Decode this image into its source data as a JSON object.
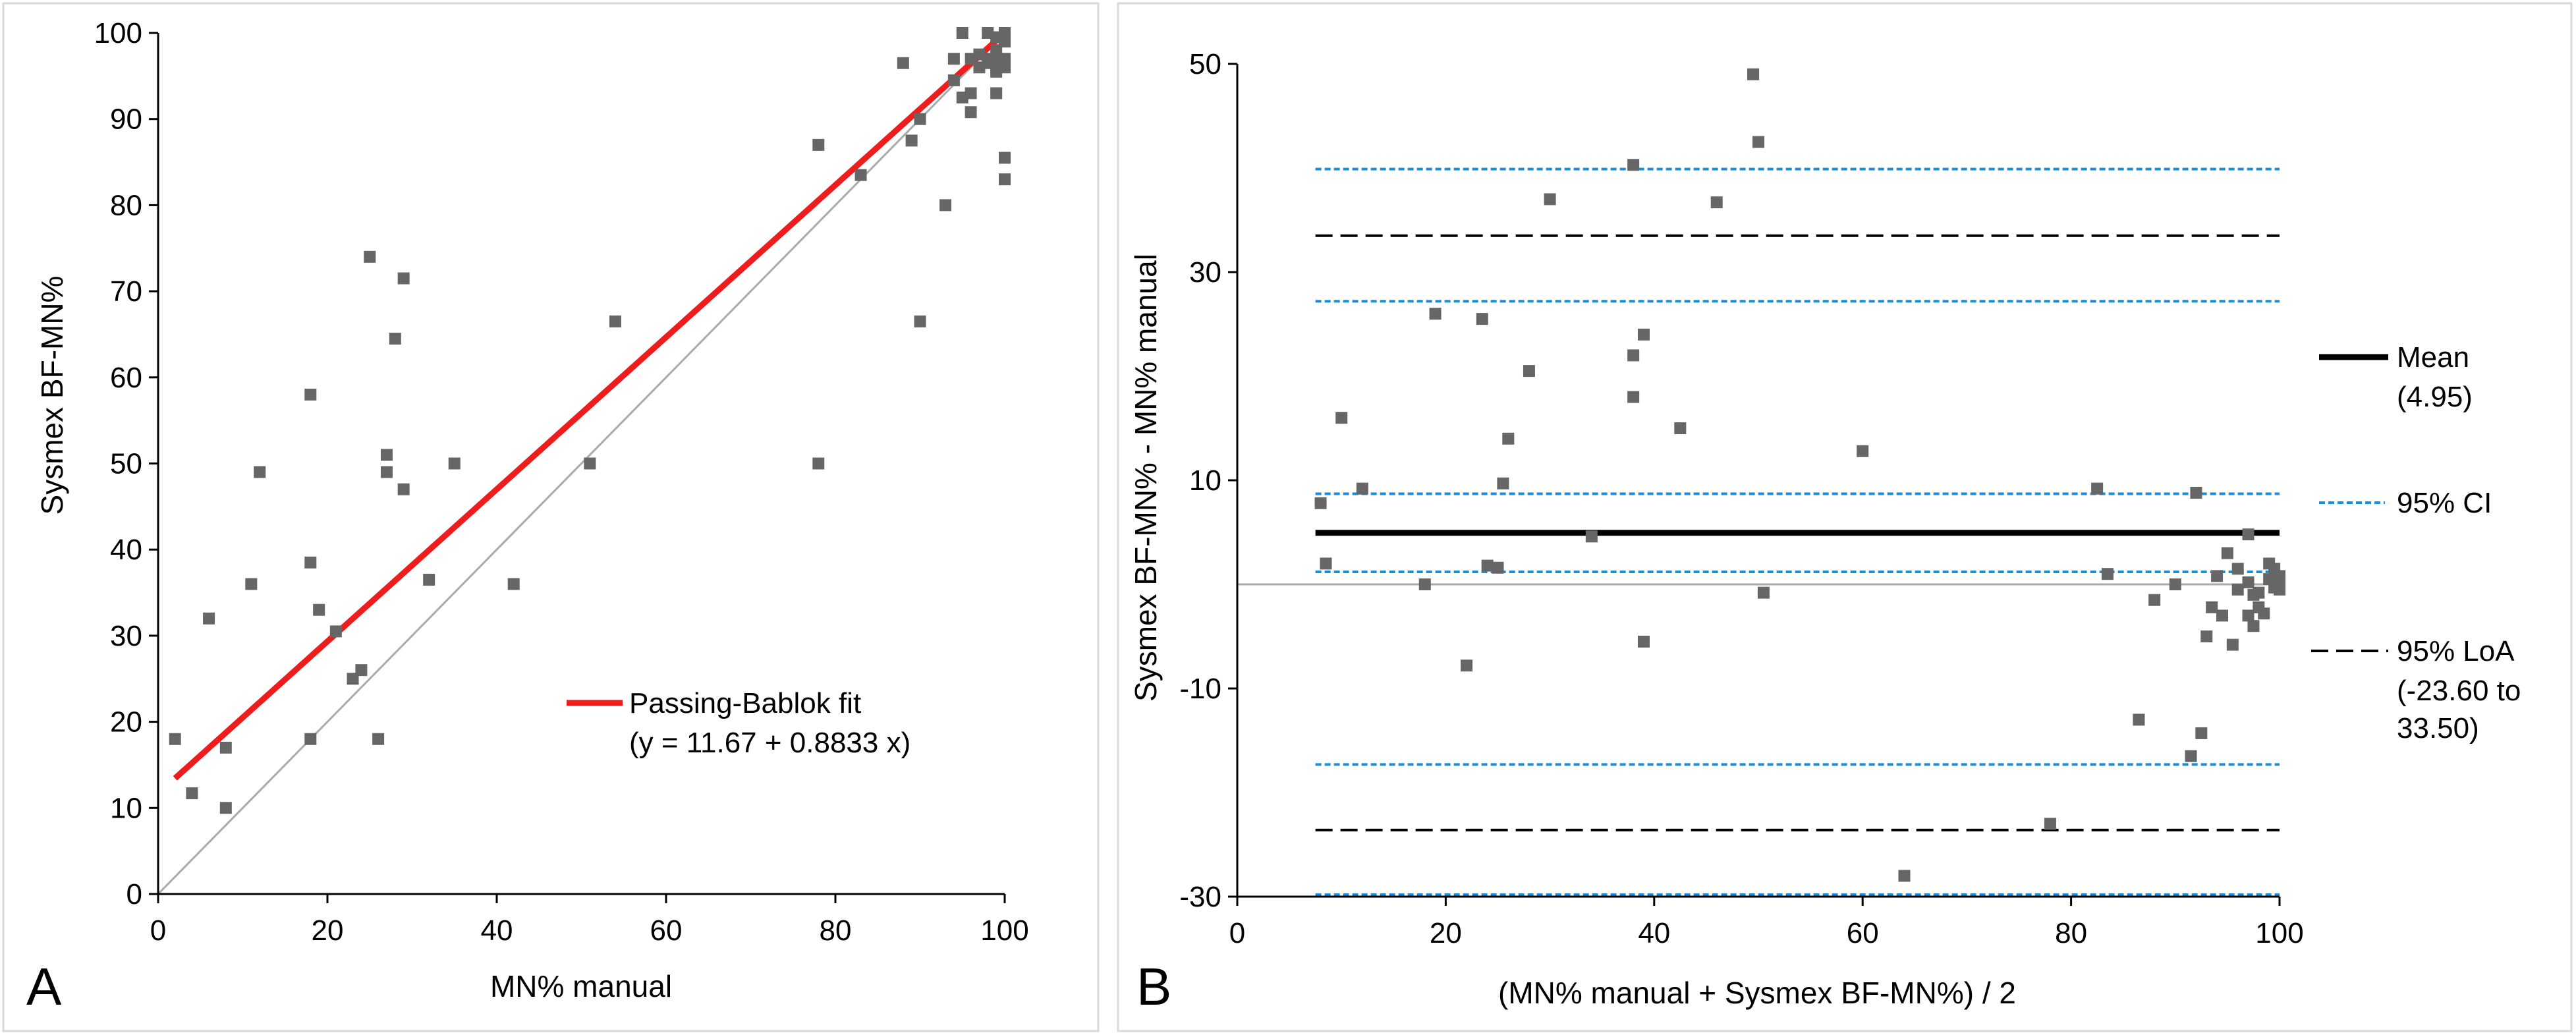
{
  "chart_data": [
    {
      "panel_label": "A",
      "type": "scatter",
      "xlabel": "MN% manual",
      "ylabel": "Sysmex BF-MN%",
      "xlim": [
        0,
        100
      ],
      "ylim": [
        0,
        100
      ],
      "xticks": [
        0,
        20,
        40,
        60,
        80,
        100
      ],
      "yticks": [
        0,
        10,
        20,
        30,
        40,
        50,
        60,
        70,
        80,
        90,
        100
      ],
      "grid": false,
      "colors": {
        "points": "#666666",
        "fit": "#ee1c1c",
        "identity": "#aaaaaa",
        "frame": "#d9d9d9"
      },
      "identity_line": {
        "x": [
          0,
          100
        ],
        "y": [
          0,
          100
        ]
      },
      "fit_line": {
        "name": "Passing-Bablok fit",
        "equation": "(y = 11.67 + 0.8833 x)",
        "intercept": 11.67,
        "slope": 0.8833,
        "x_range": [
          2,
          100
        ]
      },
      "legend": {
        "position": "lower-right"
      },
      "points": [
        [
          2,
          18
        ],
        [
          4,
          11.7
        ],
        [
          6,
          32
        ],
        [
          8,
          17
        ],
        [
          8,
          10
        ],
        [
          11,
          36
        ],
        [
          12,
          49
        ],
        [
          18,
          58
        ],
        [
          18,
          38.5
        ],
        [
          18,
          18
        ],
        [
          19,
          33
        ],
        [
          21,
          30.5
        ],
        [
          23,
          25
        ],
        [
          24,
          26
        ],
        [
          25,
          74
        ],
        [
          26,
          18
        ],
        [
          27,
          51
        ],
        [
          27,
          49
        ],
        [
          28,
          64.5
        ],
        [
          29,
          71.5
        ],
        [
          29,
          47
        ],
        [
          32,
          36.5
        ],
        [
          35,
          50
        ],
        [
          42,
          36
        ],
        [
          51,
          50
        ],
        [
          54,
          66.5
        ],
        [
          78,
          50
        ],
        [
          78,
          87
        ],
        [
          83,
          83.5
        ],
        [
          88,
          96.5
        ],
        [
          89,
          87.5
        ],
        [
          90,
          90
        ],
        [
          90,
          66.5
        ],
        [
          93,
          80
        ],
        [
          94,
          94.5
        ],
        [
          94,
          97
        ],
        [
          95,
          100
        ],
        [
          95,
          92.5
        ],
        [
          96,
          90.8
        ],
        [
          96,
          93
        ],
        [
          96,
          97
        ],
        [
          97,
          96
        ],
        [
          97,
          97.5
        ],
        [
          98,
          100
        ],
        [
          98,
          97
        ],
        [
          98,
          96.5
        ],
        [
          99,
          99.5
        ],
        [
          99,
          98
        ],
        [
          99,
          97
        ],
        [
          99,
          96
        ],
        [
          99,
          93
        ],
        [
          99,
          95.5
        ],
        [
          100,
          100
        ],
        [
          100,
          99
        ],
        [
          100,
          97
        ],
        [
          100,
          96.5
        ],
        [
          100,
          96
        ],
        [
          100,
          85.5
        ],
        [
          100,
          83
        ]
      ]
    },
    {
      "panel_label": "B",
      "type": "scatter",
      "xlabel": "(MN% manual + Sysmex BF-MN%) / 2",
      "ylabel": "Sysmex BF-MN% - MN% manual",
      "xlim": [
        0,
        100
      ],
      "ylim": [
        -30,
        50
      ],
      "xticks": [
        0,
        20,
        40,
        60,
        80,
        100
      ],
      "yticks": [
        -30,
        -10,
        10,
        30,
        50
      ],
      "grid": false,
      "colors": {
        "points": "#666666",
        "mean": "#000000",
        "ci": "#1a8fd6",
        "loa": "#000000",
        "zero": "#aaaaaa",
        "frame": "#d9d9d9"
      },
      "mean": {
        "value": 4.95,
        "label": "Mean",
        "sub": "(4.95)"
      },
      "ci": {
        "label": "95% CI",
        "lines": [
          39.9,
          27.2,
          8.7,
          1.2,
          -17.3,
          -29.8
        ]
      },
      "loa": {
        "label": "95% LoA",
        "lower": -23.6,
        "upper": 33.5,
        "sub1": "(-23.60 to",
        "sub2": "33.50)"
      },
      "legend": {
        "position": "right"
      },
      "points": [
        [
          8,
          7.8
        ],
        [
          8.5,
          2
        ],
        [
          10,
          16
        ],
        [
          12,
          9.2
        ],
        [
          18,
          0
        ],
        [
          19,
          26
        ],
        [
          22,
          -7.8
        ],
        [
          23.5,
          25.5
        ],
        [
          24,
          1.8
        ],
        [
          25,
          1.6
        ],
        [
          25.5,
          9.7
        ],
        [
          26,
          14
        ],
        [
          28,
          20.5
        ],
        [
          30,
          37
        ],
        [
          34,
          4.6
        ],
        [
          38,
          22
        ],
        [
          38,
          18
        ],
        [
          38,
          40.3
        ],
        [
          39,
          24
        ],
        [
          39,
          -5.5
        ],
        [
          42.5,
          15
        ],
        [
          46,
          36.7
        ],
        [
          49.5,
          49
        ],
        [
          50,
          42.5
        ],
        [
          50.5,
          -0.8
        ],
        [
          60,
          12.8
        ],
        [
          64,
          -28
        ],
        [
          78,
          -23
        ],
        [
          82.5,
          9.2
        ],
        [
          83.5,
          1
        ],
        [
          86.5,
          -13
        ],
        [
          88,
          -1.5
        ],
        [
          90,
          0
        ],
        [
          91.5,
          -16.5
        ],
        [
          92,
          8.8
        ],
        [
          92.5,
          -14.3
        ],
        [
          93,
          -5
        ],
        [
          93.5,
          -2.2
        ],
        [
          94,
          0.8
        ],
        [
          94.5,
          -3
        ],
        [
          95,
          3
        ],
        [
          95.5,
          -5.8
        ],
        [
          96,
          -0.5
        ],
        [
          96,
          1.5
        ],
        [
          97,
          -3
        ],
        [
          97,
          4.8
        ],
        [
          97,
          0.2
        ],
        [
          97.5,
          -4
        ],
        [
          97.5,
          -1
        ],
        [
          98,
          -2.2
        ],
        [
          98,
          -0.8
        ],
        [
          98.5,
          -2.8
        ],
        [
          99,
          2
        ],
        [
          99,
          0.5
        ],
        [
          99.5,
          1.5
        ],
        [
          99.5,
          -0.3
        ],
        [
          100,
          0
        ],
        [
          100,
          0.8
        ],
        [
          100,
          -0.5
        ]
      ]
    }
  ]
}
